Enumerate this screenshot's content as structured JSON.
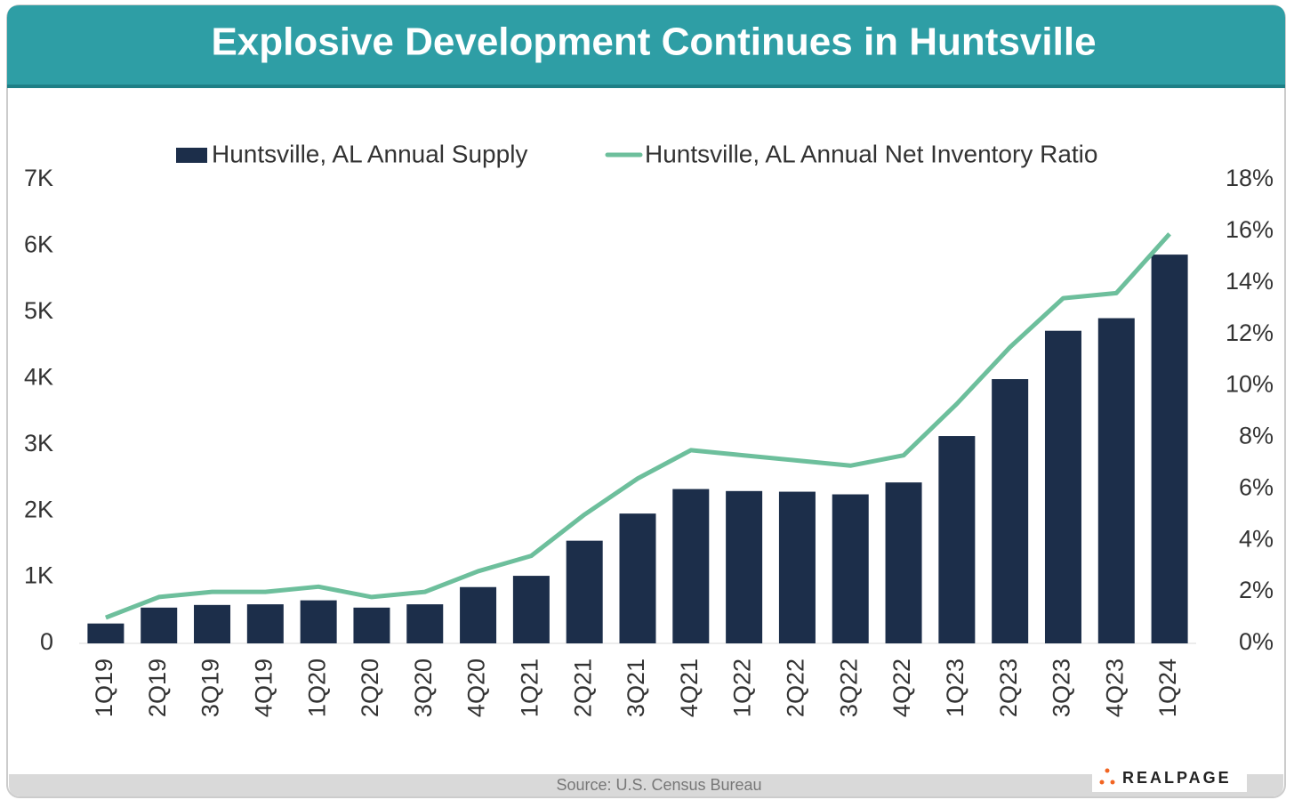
{
  "chart_data": {
    "type": "bar",
    "title": "Explosive Development Continues in Huntsville",
    "source": "Source: U.S. Census Bureau",
    "logo": "REALPAGE",
    "categories": [
      "1Q19",
      "2Q19",
      "3Q19",
      "4Q19",
      "1Q20",
      "2Q20",
      "3Q20",
      "4Q20",
      "1Q21",
      "2Q21",
      "3Q21",
      "4Q21",
      "1Q22",
      "2Q22",
      "3Q22",
      "4Q22",
      "1Q23",
      "2Q23",
      "3Q23",
      "4Q23",
      "1Q24"
    ],
    "series": [
      {
        "name": "Huntsville, AL Annual Supply",
        "type": "bar",
        "axis": "y",
        "color": "#1c2e4a",
        "values": [
          300,
          540,
          580,
          590,
          650,
          540,
          590,
          850,
          1020,
          1550,
          1960,
          2330,
          2300,
          2290,
          2250,
          2430,
          3130,
          3990,
          4720,
          4910,
          5870
        ]
      },
      {
        "name": "Huntsville, AL Annual Net Inventory Ratio",
        "type": "line",
        "axis": "y2",
        "color": "#6dbf9c",
        "values": [
          1.0,
          1.8,
          2.0,
          2.0,
          2.2,
          1.8,
          2.0,
          2.8,
          3.4,
          5.0,
          6.4,
          7.5,
          7.3,
          7.1,
          6.9,
          7.3,
          9.3,
          11.5,
          13.4,
          13.6,
          15.9
        ]
      }
    ],
    "ylim": [
      0,
      7000
    ],
    "yticks": [
      0,
      {
        "value": 1000,
        "label": "1K"
      },
      {
        "value": 2000,
        "label": "2K"
      },
      {
        "value": 3000,
        "label": "3K"
      },
      {
        "value": 4000,
        "label": "4K"
      },
      {
        "value": 5000,
        "label": "5K"
      },
      {
        "value": 6000,
        "label": "6K"
      },
      {
        "value": 7000,
        "label": "7K"
      }
    ],
    "y2lim": [
      0,
      18
    ],
    "y2ticks": [
      {
        "value": 0,
        "label": "0%"
      },
      {
        "value": 2,
        "label": "2%"
      },
      {
        "value": 4,
        "label": "4%"
      },
      {
        "value": 6,
        "label": "6%"
      },
      {
        "value": 8,
        "label": "8%"
      },
      {
        "value": 10,
        "label": "10%"
      },
      {
        "value": 12,
        "label": "12%"
      },
      {
        "value": 14,
        "label": "14%"
      },
      {
        "value": 16,
        "label": "16%"
      },
      {
        "value": 18,
        "label": "18%"
      }
    ],
    "grid": false
  }
}
